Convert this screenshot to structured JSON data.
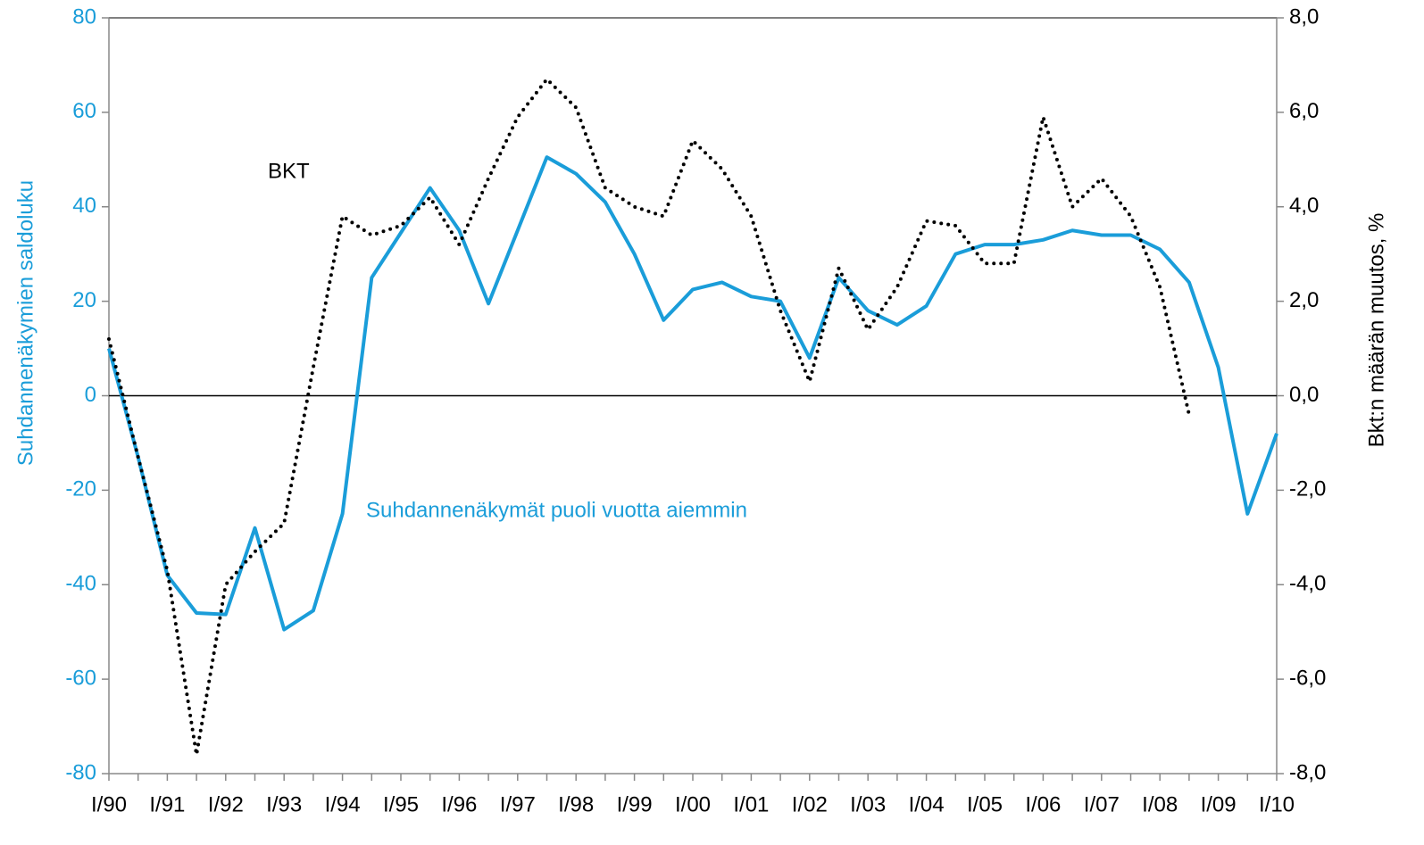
{
  "chart_data": {
    "type": "line",
    "annotations": [
      "BKT",
      "Suhdannenäkymät puoli vuotta aiemmin"
    ],
    "ylabel": "Suhdannenäkymien saldoluku",
    "y2label": "Bkt:n määrän muutos, %",
    "categories": [
      "I/90",
      null,
      "I/91",
      null,
      "I/92",
      null,
      "I/93",
      null,
      "I/94",
      null,
      "I/95",
      null,
      "I/96",
      null,
      "I/97",
      null,
      "I/98",
      null,
      "I/99",
      null,
      "I/00",
      null,
      "I/01",
      null,
      "I/02",
      null,
      "I/03",
      null,
      "I/04",
      null,
      "I/05",
      null,
      "I/06",
      null,
      "I/07",
      null,
      "I/08",
      null,
      "I/09",
      null,
      "I/10"
    ],
    "series": [
      {
        "name": "Suhdannenäkymät puoli vuotta aiemmin",
        "color": "#1a9dd9",
        "axis": "y",
        "dash": "solid",
        "values": [
          10,
          -13,
          -38,
          -46,
          -46.3,
          -28,
          -49.5,
          -45.5,
          -25,
          25,
          34.5,
          44,
          35,
          19.5,
          35,
          50.5,
          47,
          41,
          30,
          16,
          22.5,
          24,
          21,
          20,
          8,
          25,
          18,
          15,
          19,
          30,
          32,
          32,
          33,
          35,
          34,
          34,
          31,
          24,
          6,
          -25,
          -8
        ]
      },
      {
        "name": "BKT",
        "color": "#000000",
        "axis": "y2",
        "dash": "dotted",
        "values": [
          1.2,
          -1.3,
          -3.7,
          -7.6,
          -4.0,
          -3.3,
          -2.7,
          0.6,
          3.8,
          3.4,
          3.6,
          4.2,
          3.2,
          4.6,
          5.9,
          6.7,
          6.1,
          4.4,
          4.0,
          3.8,
          5.4,
          4.8,
          3.8,
          1.8,
          0.3,
          2.7,
          1.4,
          2.3,
          3.7,
          3.6,
          2.8,
          2.8,
          5.9,
          4.0,
          4.6,
          3.8,
          2.3,
          -0.4,
          null,
          null,
          null
        ]
      }
    ],
    "ylim": [
      -80,
      80
    ],
    "yticks": [
      -80,
      -60,
      -40,
      -20,
      0,
      20,
      40,
      60,
      80
    ],
    "y2lim": [
      -8,
      8
    ],
    "y2ticks": [
      {
        "value": -8,
        "label": "-8,0"
      },
      {
        "value": -6,
        "label": "-6,0"
      },
      {
        "value": -4,
        "label": "-4,0"
      },
      {
        "value": -2,
        "label": "-2,0"
      },
      {
        "value": 0,
        "label": "0,0"
      },
      {
        "value": 2,
        "label": "2,0"
      },
      {
        "value": 4,
        "label": "4,0"
      },
      {
        "value": 6,
        "label": "6,0"
      },
      {
        "value": 8,
        "label": "8,0"
      }
    ],
    "ycolor": "#1a9dd9",
    "y2color": "#000000"
  }
}
